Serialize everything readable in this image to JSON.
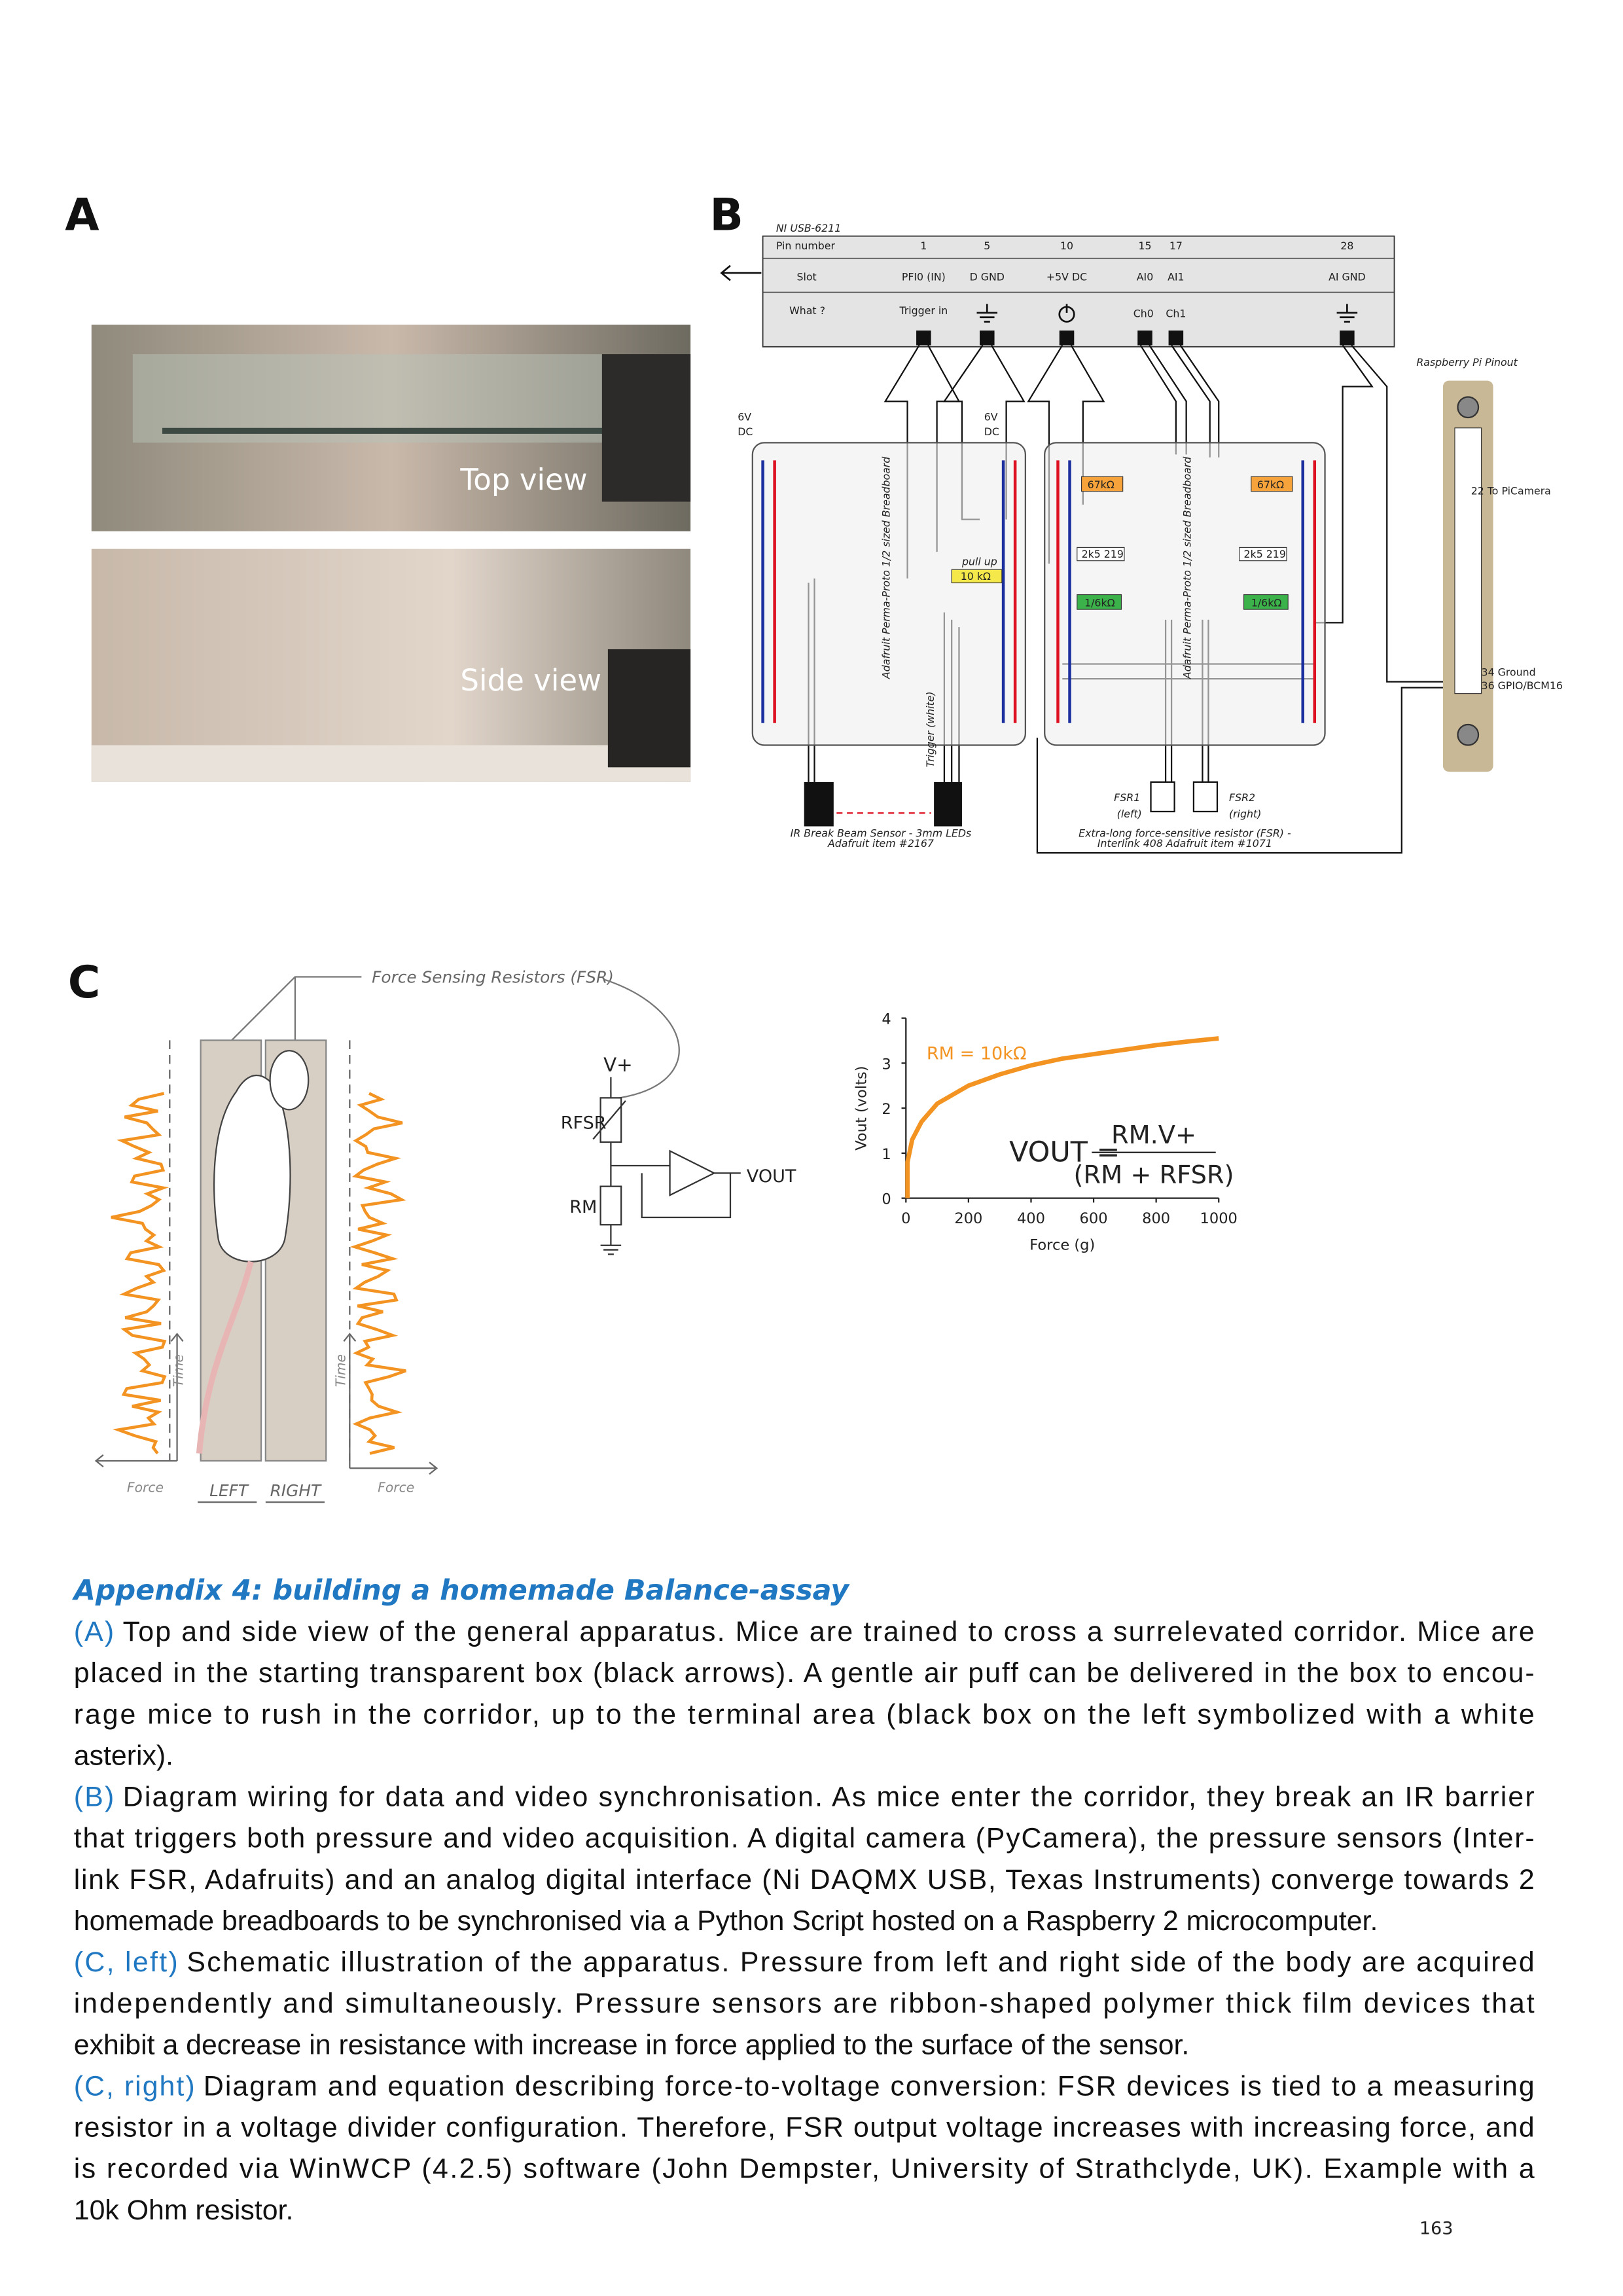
{
  "panel_labels": [
    "A",
    "B",
    "C"
  ],
  "figure_a": {
    "top": "Top view",
    "side": "Side view"
  },
  "figure_b": {
    "ni_title": "NI USB-6211",
    "row_headers": [
      "Pin number",
      "Slot",
      "What ?"
    ],
    "pins": [
      1,
      5,
      10,
      15,
      17,
      28
    ],
    "slots": [
      "PFI0 (IN)",
      "D GND",
      "+5V DC",
      "AI0",
      "AI1",
      "AI GND"
    ],
    "what": [
      "Trigger in",
      "Ch0",
      "Ch1"
    ],
    "supply": [
      "6V",
      "DC",
      "6V",
      "DC"
    ],
    "breadboard": "Adafruit Perma-Proto 1/2 sized Breadboard",
    "pullup": "pull up",
    "r10k": "10 kΩ",
    "r67k": "67kΩ",
    "pot": "2k5 219",
    "r16k": "1/6kΩ",
    "trigger": "Trigger (white)",
    "ir": [
      "IR Break Beam Sensor - 3mm LEDs",
      "Adafruit item #2167"
    ],
    "fsr1": [
      "FSR1",
      "(left)"
    ],
    "fsr2": [
      "FSR2",
      "(right)"
    ],
    "fsr_note": [
      "Extra-long force-sensitive resistor (FSR) -",
      "Interlink 408 Adafruit item #1071"
    ],
    "rpi_title": "Raspberry Pi Pinout",
    "rpi_pins": [
      "22 To PiCamera",
      "34 Ground",
      "36 GPIO/BCM16"
    ]
  },
  "figure_c": {
    "fsr_label": "Force Sensing Resistors (FSR)",
    "time": "Time",
    "force": "Force",
    "left": "LEFT",
    "right": "RIGHT",
    "vplus": "V+",
    "rfsr": "RFSR",
    "rm": "RM",
    "vout": "VOUT",
    "eq_lhs": "VOUT =",
    "eq_num": "RM.V+",
    "eq_den": "(RM + RFSR)"
  },
  "chart_data": {
    "type": "line",
    "y_label": "Vout (volts)",
    "x_label": "Force (g)",
    "xlim": [
      0,
      1000
    ],
    "ylim": [
      0,
      4
    ],
    "xticks": [
      0,
      200,
      400,
      600,
      800,
      1000
    ],
    "yticks": [
      0,
      1,
      2,
      3,
      4
    ],
    "x": [
      5,
      5,
      20,
      50,
      100,
      200,
      300,
      400,
      500,
      600,
      700,
      800,
      900,
      1000
    ],
    "series": [
      {
        "name": "RM = 10kΩ",
        "color": "#f39322",
        "values": [
          0,
          0.8,
          1.3,
          1.7,
          2.1,
          2.5,
          2.75,
          2.95,
          3.1,
          3.2,
          3.3,
          3.4,
          3.48,
          3.55
        ]
      }
    ]
  },
  "caption": {
    "title": "Appendix 4: building a homemade Balance-assay",
    "paragraphs": [
      {
        "label": "(A)",
        "lines": [
          "Top and side view of the general apparatus. Mice are trained to cross a surrelevated corridor. Mice are",
          "placed in the starting transparent box (black arrows). A gentle air puff can be delivered in the box to encou-",
          "rage mice to rush in the corridor, up to the terminal area (black box on the left symbolized with a white",
          "asterix)."
        ]
      },
      {
        "label": "(B)",
        "lines": [
          "Diagram wiring for data and video synchronisation. As mice enter the corridor, they break an IR barrier",
          "that triggers both pressure and video acquisition. A digital camera (PyCamera), the pressure sensors (Inter-",
          "link FSR, Adafruits) and an analog digital interface (Ni DAQMX USB, Texas Instruments) converge towards 2",
          "homemade breadboards to be synchronised via a Python Script hosted on a Raspberry 2 microcomputer."
        ]
      },
      {
        "label": "(C, left)",
        "lines": [
          "Schematic illustration of the apparatus. Pressure from left and right side of the body are acquired",
          "independently and simultaneously.  Pressure sensors are ribbon-shaped polymer thick film devices that",
          "exhibit a decrease in resistance with increase in force applied to the surface of the sensor."
        ]
      },
      {
        "label": "(C, right)",
        "lines": [
          "Diagram and equation describing force-to-voltage conversion: FSR devices is tied to a measuring",
          "resistor in a voltage divider configuration. Therefore, FSR output voltage increases with increasing force, and",
          "is recorded via WinWCP (4.2.5) software (John Dempster, University of Strathclyde, UK). Example with a",
          "10k Ohm resistor."
        ]
      }
    ]
  },
  "page_number": 163
}
